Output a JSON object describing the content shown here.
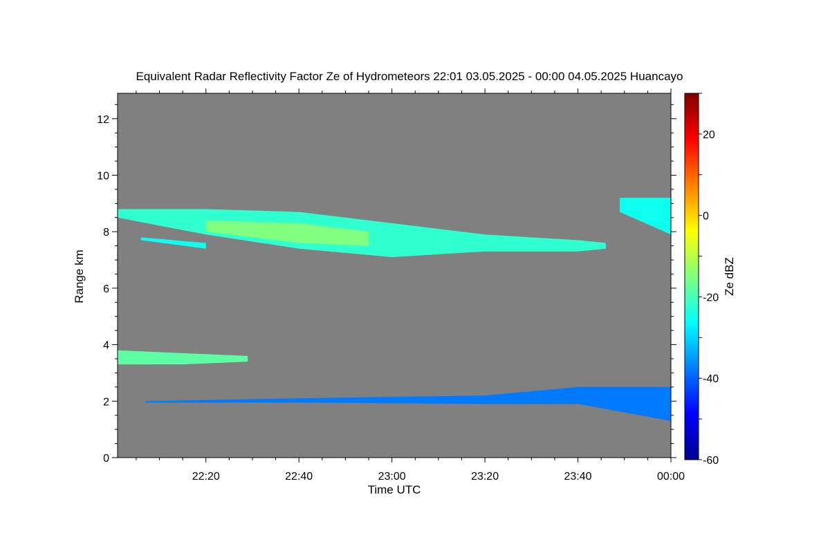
{
  "chart_data": {
    "type": "heatmap",
    "title": "Equivalent Radar Reflectivity Factor Ze of Hydrometeors   22:01 03.05.2025 - 00:00 04.05.2025 Huancayo",
    "xlabel": "Time UTC",
    "ylabel": "Range km",
    "colorbar_label": "Ze dBZ",
    "xlim_minutes_after_22_00": [
      1,
      120
    ],
    "ylim": [
      0,
      12.9
    ],
    "x_ticks": [
      {
        "m": 20,
        "label": "22:20"
      },
      {
        "m": 40,
        "label": "22:40"
      },
      {
        "m": 60,
        "label": "23:00"
      },
      {
        "m": 80,
        "label": "23:20"
      },
      {
        "m": 100,
        "label": "23:40"
      },
      {
        "m": 120,
        "label": "00:00"
      }
    ],
    "y_ticks": [
      0,
      2,
      4,
      6,
      8,
      10,
      12
    ],
    "colorbar_range": [
      -60,
      30
    ],
    "colorbar_ticks": [
      -60,
      -40,
      -20,
      0,
      20
    ],
    "background_color": "#808080",
    "echo_layers": [
      {
        "name": "upper cloud layer",
        "base": [
          [
            1,
            8.5
          ],
          [
            20,
            7.9
          ],
          [
            40,
            7.4
          ],
          [
            60,
            7.1
          ],
          [
            80,
            7.3
          ],
          [
            100,
            7.3
          ],
          [
            106,
            7.4
          ]
        ],
        "top": [
          [
            1,
            8.8
          ],
          [
            20,
            8.8
          ],
          [
            40,
            8.7
          ],
          [
            60,
            8.3
          ],
          [
            80,
            7.9
          ],
          [
            100,
            7.7
          ],
          [
            106,
            7.6
          ]
        ],
        "ze_dbz": -22
      },
      {
        "name": "upper cloud core",
        "base": [
          [
            20,
            8.0
          ],
          [
            40,
            7.6
          ],
          [
            55,
            7.5
          ]
        ],
        "top": [
          [
            20,
            8.4
          ],
          [
            40,
            8.3
          ],
          [
            55,
            8.0
          ]
        ],
        "ze_dbz": -15
      },
      {
        "name": "secondary upper band",
        "base": [
          [
            6,
            7.7
          ],
          [
            20,
            7.4
          ]
        ],
        "top": [
          [
            6,
            7.8
          ],
          [
            20,
            7.6
          ]
        ],
        "ze_dbz": -25
      },
      {
        "name": "upper layer end",
        "base": [
          [
            109,
            8.7
          ],
          [
            120,
            7.9
          ]
        ],
        "top": [
          [
            109,
            9.2
          ],
          [
            120,
            9.2
          ]
        ],
        "ze_dbz": -25
      },
      {
        "name": "mid layer",
        "base": [
          [
            1,
            3.3
          ],
          [
            15,
            3.3
          ],
          [
            29,
            3.4
          ]
        ],
        "top": [
          [
            1,
            3.8
          ],
          [
            15,
            3.7
          ],
          [
            29,
            3.6
          ]
        ],
        "ze_dbz": -18
      },
      {
        "name": "low layer",
        "base": [
          [
            7,
            1.95
          ],
          [
            40,
            1.95
          ],
          [
            80,
            1.9
          ],
          [
            100,
            1.9
          ],
          [
            120,
            1.3
          ]
        ],
        "top": [
          [
            7,
            2.0
          ],
          [
            40,
            2.1
          ],
          [
            80,
            2.2
          ],
          [
            100,
            2.5
          ],
          [
            120,
            2.5
          ]
        ],
        "ze_dbz": -38
      }
    ]
  }
}
